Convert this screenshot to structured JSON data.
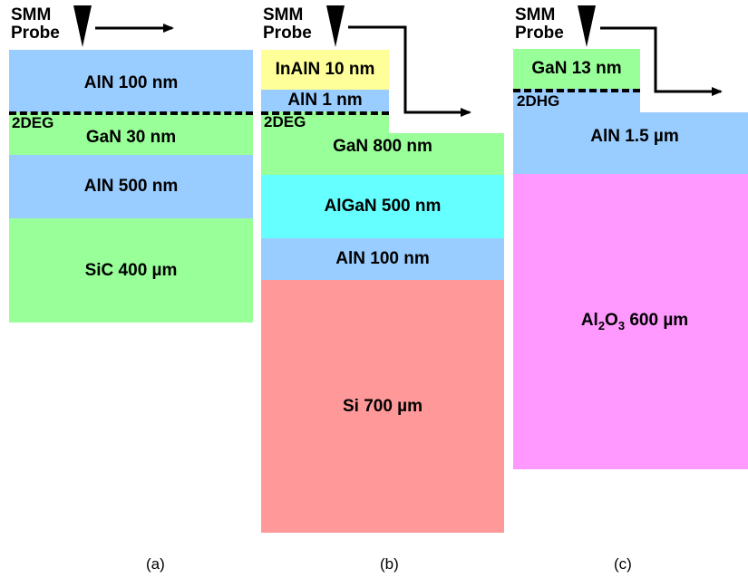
{
  "probe_label_line1": "SMM",
  "probe_label_line2": "Probe",
  "panels": [
    {
      "caption": "(a)",
      "gas": "2DEG",
      "layers": [
        {
          "text": "AlN  100 nm",
          "color": "#99ccff"
        },
        {
          "text": "GaN 30 nm",
          "color": "#99ff99"
        },
        {
          "text": "AlN  500 nm",
          "color": "#99ccff"
        },
        {
          "text": "SiC 400 µm",
          "color": "#99ff99"
        }
      ]
    },
    {
      "caption": "(b)",
      "gas": "2DEG",
      "layers": [
        {
          "text": "InAlN 10 nm",
          "color": "#ffff99"
        },
        {
          "text": "AlN 1 nm",
          "color": "#99ccff"
        },
        {
          "text": "GaN 800 nm",
          "color": "#99ff99"
        },
        {
          "text": "AlGaN 500 nm",
          "color": "#66ffff"
        },
        {
          "text": "AlN 100 nm",
          "color": "#99ccff"
        },
        {
          "text": "Si 700 µm",
          "color": "#ff9999"
        }
      ]
    },
    {
      "caption": "(c)",
      "gas": "2DHG",
      "layers": [
        {
          "text": "GaN 13 nm",
          "color": "#99ff99"
        },
        {
          "text": "AlN  1.5 µm",
          "color": "#99ccff"
        },
        {
          "text": "Al2O3 600 µm",
          "color": "#ff99ff"
        }
      ]
    }
  ]
}
